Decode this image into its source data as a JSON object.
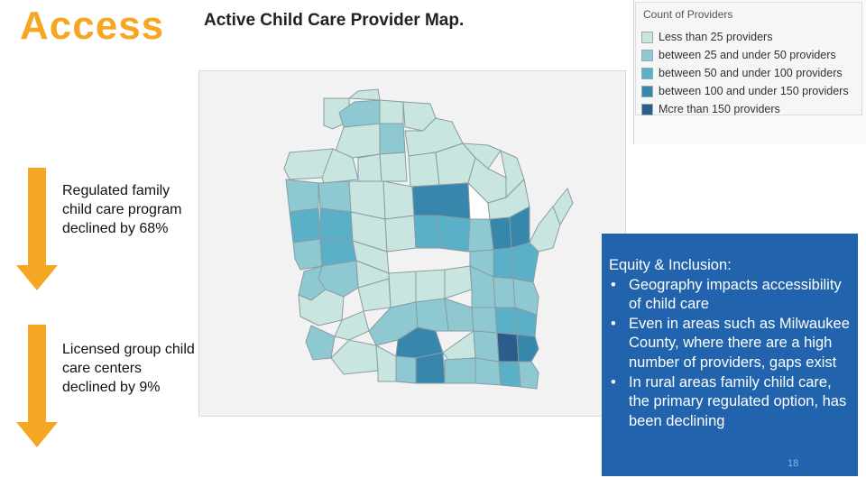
{
  "slide": {
    "title": "Access",
    "page_number": "18"
  },
  "map": {
    "title": "Active Child Care Provider Map.",
    "legend_title": "Count of Providers",
    "legend": [
      {
        "label": "Less than 25 providers",
        "color": "#c8e6df"
      },
      {
        "label": "between 25 and under 50 providers",
        "color": "#8ec8d0"
      },
      {
        "label": "between 50 and under 100 providers",
        "color": "#5ab0c7"
      },
      {
        "label": "between 100 and under 150 providers",
        "color": "#3787ad"
      },
      {
        "label": "Mcre than 150 providers",
        "color": "#2b5d8a"
      }
    ],
    "empty_color": "#ffffff",
    "border_color": "#8a9ba3"
  },
  "stats": [
    {
      "text": "Regulated family child care program declined by 68%"
    },
    {
      "text": "Licensed group child care centers declined by 9%"
    }
  ],
  "equity": {
    "heading": "Equity & Inclusion:",
    "bullets": [
      "Geography impacts accessibility of child care",
      "Even in areas such as Milwaukee County, where there are a high number of providers, gaps exist",
      "In rural areas family child care, the primary regulated option, has been declining"
    ]
  },
  "colors": {
    "accent": "#f5a623",
    "panel": "#2164ad"
  }
}
